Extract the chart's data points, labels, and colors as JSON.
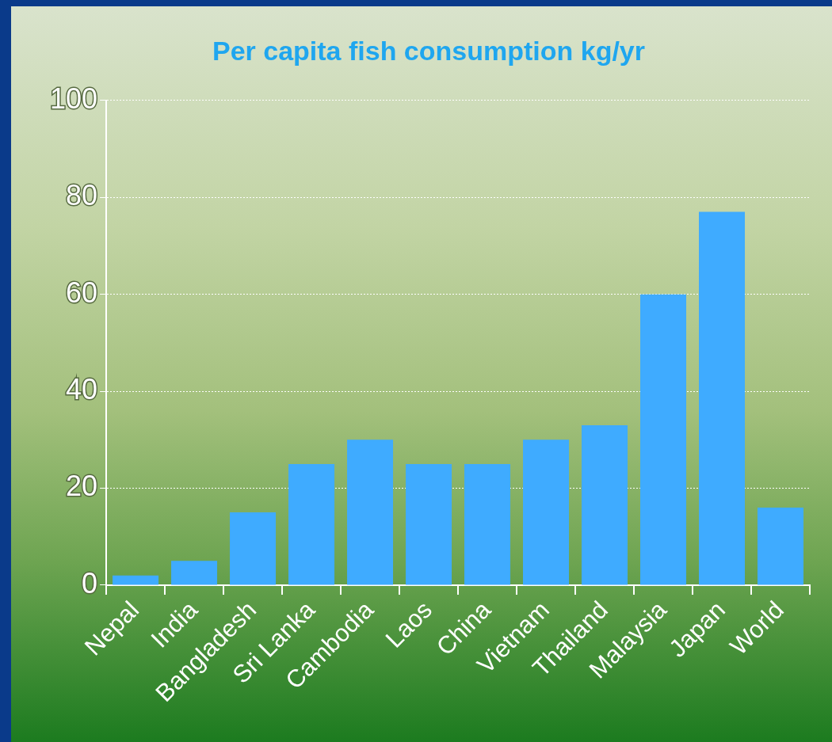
{
  "chart_data": {
    "type": "bar",
    "title": "Per capita fish consumption kg/yr",
    "categories": [
      "Nepal",
      "India",
      "Bangladesh",
      "Sri Lanka",
      "Cambodia",
      "Laos",
      "China",
      "Vietnam",
      "Thailand",
      "Malaysia",
      "Japan",
      "World"
    ],
    "values": [
      2,
      5,
      15,
      25,
      30,
      25,
      25,
      30,
      33,
      60,
      77,
      16
    ],
    "color": "#3fabff",
    "ylim": [
      0,
      100
    ],
    "yticks": [
      0,
      20,
      40,
      60,
      80,
      100
    ],
    "grid": "y",
    "legend": false
  }
}
